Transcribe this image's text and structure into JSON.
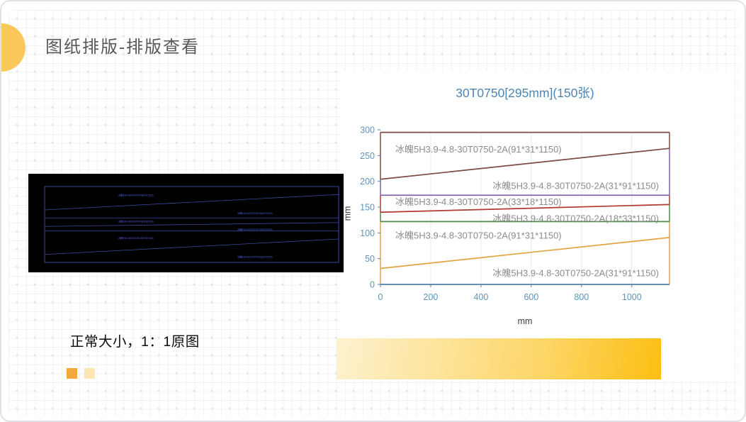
{
  "slide": {
    "title": "图纸排版-排版查看",
    "title_color": "#58585c",
    "accent_color": "#fbc85c",
    "caption": "正常大小，1：1原图",
    "decor_squares": [
      "#f2a93b",
      "#fbe6b4"
    ],
    "gradient_bar": [
      "#fdf2d0",
      "#fdd564",
      "#fcbe11"
    ]
  },
  "chart_data": {
    "type": "line",
    "title": "30T0750[295mm](150张)",
    "title_color": "#4e86b3",
    "xlabel": "mm",
    "ylabel": "mm",
    "xlim": [
      0,
      1150
    ],
    "ylim": [
      0,
      300
    ],
    "x_ticks": [
      0,
      200,
      400,
      600,
      800,
      1000
    ],
    "y_ticks": [
      0,
      50,
      100,
      150,
      200,
      250,
      300
    ],
    "grid": "vertical-only",
    "gridline_color": "#ebebeb",
    "legend": "none",
    "axis_color": "#4e80a9",
    "tick_label_color": "#6094bd",
    "label_color": "#8c8c8c",
    "sheet": {
      "name": "30T0750",
      "width_mm": 1150,
      "height_mm": 295,
      "count": "150张"
    },
    "boundaries": [
      {
        "name": "sheet-top-edge",
        "color": "#7d4a44",
        "y_left_mm": 295,
        "y_right_mm": 295
      },
      {
        "name": "cut-line-5",
        "color": "#7d4a44",
        "y_left_mm": 204,
        "y_right_mm": 264
      },
      {
        "name": "cut-line-4",
        "color": "#8365a9",
        "y_left_mm": 173,
        "y_right_mm": 173
      },
      {
        "name": "cut-line-3",
        "color": "#b23931",
        "y_left_mm": 140,
        "y_right_mm": 155
      },
      {
        "name": "cut-line-2",
        "color": "#4f8a48",
        "y_left_mm": 122,
        "y_right_mm": 122
      },
      {
        "name": "cut-line-1",
        "color": "#e2a340",
        "y_left_mm": 31,
        "y_right_mm": 91
      },
      {
        "name": "sheet-bottom-edge",
        "color": "#4e80a9",
        "y_left_mm": 0,
        "y_right_mm": 0
      }
    ],
    "left_border_segments": [
      {
        "from": 0,
        "to": 122,
        "color": "#e2a340"
      },
      {
        "from": 122,
        "to": 140,
        "color": "#4f8a48"
      },
      {
        "from": 140,
        "to": 173,
        "color": "#b23931"
      },
      {
        "from": 173,
        "to": 204,
        "color": "#8365a9"
      },
      {
        "from": 204,
        "to": 295,
        "color": "#7d4a44"
      }
    ],
    "right_border_segments": [
      {
        "from": 0,
        "to": 122,
        "color": "#e2a340"
      },
      {
        "from": 122,
        "to": 155,
        "color": "#4f8a48"
      },
      {
        "from": 155,
        "to": 173,
        "color": "#b23931"
      },
      {
        "from": 173,
        "to": 264,
        "color": "#8365a9"
      },
      {
        "from": 264,
        "to": 295,
        "color": "#7d4a44"
      }
    ],
    "piece_labels": [
      {
        "text": "冰魄5H3.9-4.8-30T0750-2A(91*31*1150)",
        "align": "left",
        "y_mm": 262
      },
      {
        "text": "冰魄5H3.9-4.8-30T0750-2A(31*91*1150)",
        "align": "right",
        "y_mm": 191
      },
      {
        "text": "冰魄5H3.9-4.8-30T0750-2A(33*18*1150)",
        "align": "left",
        "y_mm": 160
      },
      {
        "text": "冰魄5H3.9-4.8-30T0750-2A(18*33*1150)",
        "align": "right",
        "y_mm": 128
      },
      {
        "text": "冰魄5H3.9-4.8-30T0750-2A(91*31*1150)",
        "align": "left",
        "y_mm": 95
      },
      {
        "text": "冰魄5H3.9-4.8-30T0750-2A(31*91*1150)",
        "align": "right",
        "y_mm": 22
      }
    ]
  },
  "cad_preview": {
    "background": "#000000",
    "line_color": "#3a499b",
    "text_color": "#4756c4",
    "mirrors_chart": true
  }
}
